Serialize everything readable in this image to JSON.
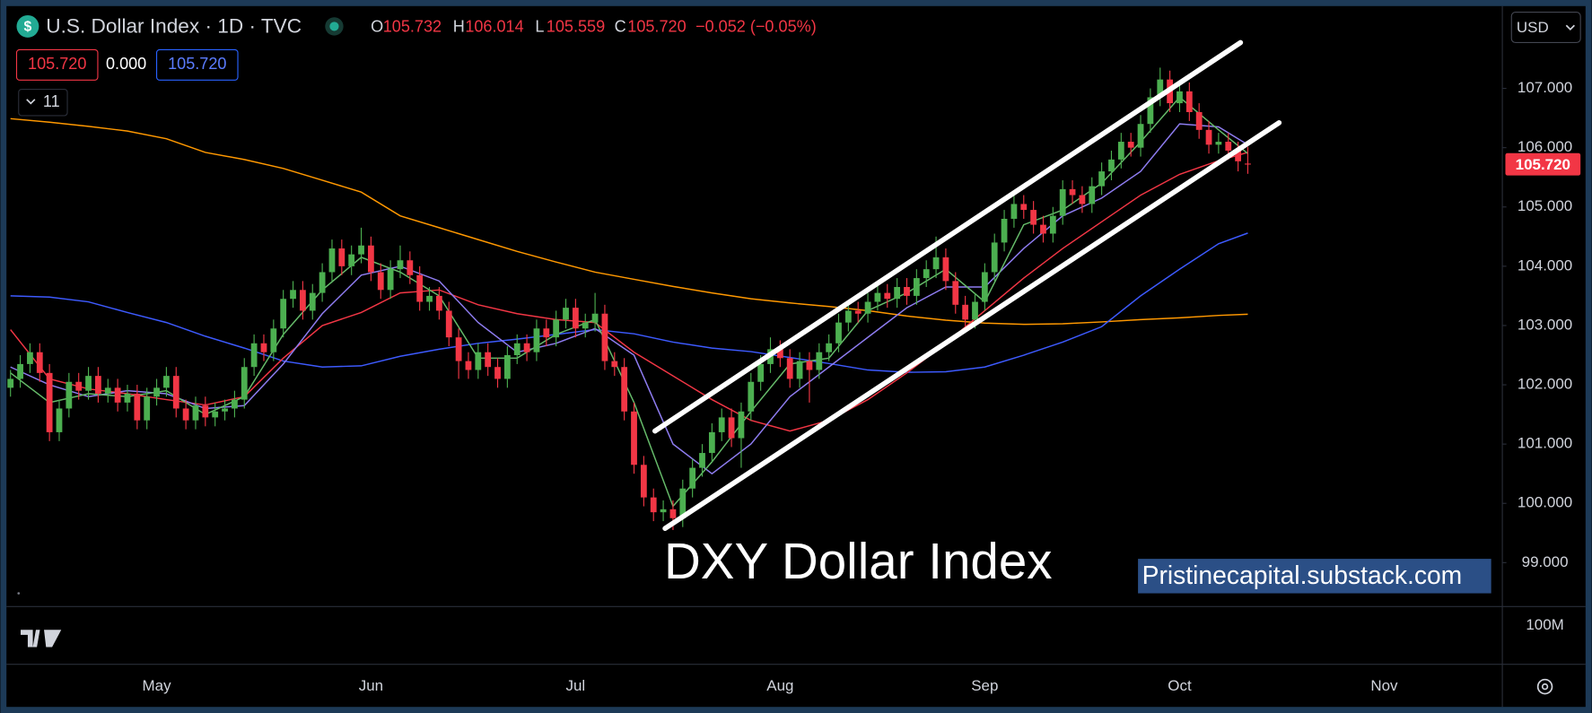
{
  "chart_data": {
    "type": "candlestick",
    "title": "U.S. Dollar Index · 1D · TVC",
    "status": {
      "fields": [
        {
          "key": "O",
          "value": "105.732"
        },
        {
          "key": "H",
          "value": "106.014"
        },
        {
          "key": "L",
          "value": "105.559"
        },
        {
          "key": "C",
          "value": "105.720"
        }
      ],
      "change": "−0.052 (−0.05%)"
    },
    "badges": [
      "105.720",
      "0.000",
      "105.720"
    ],
    "indicator_count": "11",
    "currency": "USD",
    "last_label": "105.720",
    "volume_axis_label": "100M",
    "annotations": [
      "DXY Dollar Index",
      "Pristinecapital.substack.com"
    ],
    "up_color": "#4caf50",
    "down_color": "#f23645",
    "grid": false,
    "ylim": [
      98.26,
      108.32
    ],
    "yticks": [
      {
        "value": 99,
        "label": "99.000"
      },
      {
        "value": 100,
        "label": "100.000"
      },
      {
        "value": 101,
        "label": "101.000"
      },
      {
        "value": 102,
        "label": "102.000"
      },
      {
        "value": 103,
        "label": "103.000"
      },
      {
        "value": 104,
        "label": "104.000"
      },
      {
        "value": 105,
        "label": "105.000"
      },
      {
        "value": 106,
        "label": "106.000"
      },
      {
        "value": 107,
        "label": "107.000"
      }
    ],
    "categories": [
      null,
      null,
      null,
      null,
      null,
      null,
      null,
      null,
      null,
      null,
      null,
      null,
      null,
      null,
      null,
      "May",
      null,
      null,
      null,
      null,
      null,
      null,
      null,
      null,
      null,
      null,
      null,
      null,
      null,
      null,
      null,
      null,
      null,
      null,
      null,
      null,
      null,
      "Jun",
      null,
      null,
      null,
      null,
      null,
      null,
      null,
      null,
      null,
      null,
      null,
      null,
      null,
      null,
      null,
      null,
      null,
      null,
      null,
      null,
      "Jul",
      null,
      null,
      null,
      null,
      null,
      null,
      null,
      null,
      null,
      null,
      null,
      null,
      null,
      null,
      null,
      null,
      null,
      null,
      null,
      null,
      "Aug",
      null,
      null,
      null,
      null,
      null,
      null,
      null,
      null,
      null,
      null,
      null,
      null,
      null,
      null,
      null,
      null,
      null,
      null,
      null,
      null,
      "Sep",
      null,
      null,
      null,
      null,
      null,
      null,
      null,
      null,
      null,
      null,
      null,
      null,
      null,
      null,
      null,
      null,
      null,
      null,
      null,
      "Oct",
      null,
      null,
      null,
      null,
      null,
      null,
      null,
      null,
      null,
      null,
      null,
      null,
      null,
      null,
      null,
      null,
      null,
      null,
      null,
      null,
      "Nov",
      null
    ],
    "ohlc": [
      [
        101.95,
        102.25,
        101.8,
        102.1
      ],
      [
        102.1,
        102.5,
        101.95,
        102.35
      ],
      [
        102.35,
        102.7,
        102.2,
        102.55
      ],
      [
        102.55,
        102.7,
        102.05,
        102.2
      ],
      [
        102.2,
        102.35,
        101.05,
        101.2
      ],
      [
        101.2,
        101.75,
        101.05,
        101.6
      ],
      [
        101.6,
        102.2,
        101.45,
        102.05
      ],
      [
        102.05,
        102.2,
        101.75,
        101.9
      ],
      [
        101.9,
        102.3,
        101.75,
        102.15
      ],
      [
        102.15,
        102.3,
        101.7,
        101.85
      ],
      [
        101.85,
        102.1,
        101.7,
        101.95
      ],
      [
        101.95,
        102.1,
        101.55,
        101.7
      ],
      [
        101.7,
        102.0,
        101.55,
        101.85
      ],
      [
        101.85,
        102.0,
        101.25,
        101.4
      ],
      [
        101.4,
        101.95,
        101.25,
        101.8
      ],
      [
        101.8,
        102.1,
        101.65,
        101.95
      ],
      [
        101.95,
        102.3,
        101.8,
        102.15
      ],
      [
        102.15,
        102.3,
        101.45,
        101.6
      ],
      [
        101.6,
        101.75,
        101.25,
        101.4
      ],
      [
        101.4,
        101.8,
        101.25,
        101.65
      ],
      [
        101.65,
        101.8,
        101.3,
        101.45
      ],
      [
        101.45,
        101.7,
        101.3,
        101.55
      ],
      [
        101.55,
        101.75,
        101.4,
        101.6
      ],
      [
        101.6,
        101.9,
        101.45,
        101.75
      ],
      [
        101.75,
        102.45,
        101.6,
        102.3
      ],
      [
        102.3,
        102.85,
        102.15,
        102.7
      ],
      [
        102.7,
        102.85,
        102.4,
        102.55
      ],
      [
        102.55,
        103.1,
        102.4,
        102.95
      ],
      [
        102.95,
        103.6,
        102.8,
        103.45
      ],
      [
        103.45,
        103.75,
        103.3,
        103.6
      ],
      [
        103.6,
        103.75,
        103.1,
        103.25
      ],
      [
        103.25,
        103.7,
        103.1,
        103.55
      ],
      [
        103.55,
        104.05,
        103.4,
        103.9
      ],
      [
        103.9,
        104.45,
        103.75,
        104.3
      ],
      [
        104.3,
        104.45,
        103.85,
        104.0
      ],
      [
        104.0,
        104.35,
        103.85,
        104.2
      ],
      [
        104.2,
        104.65,
        104.05,
        104.35
      ],
      [
        104.35,
        104.5,
        103.75,
        103.9
      ],
      [
        103.9,
        104.05,
        103.45,
        103.6
      ],
      [
        103.6,
        104.1,
        103.45,
        103.95
      ],
      [
        103.95,
        104.35,
        103.8,
        104.1
      ],
      [
        104.1,
        104.25,
        103.7,
        103.85
      ],
      [
        103.85,
        104.0,
        103.25,
        103.4
      ],
      [
        103.4,
        103.65,
        103.25,
        103.5
      ],
      [
        103.5,
        103.65,
        103.1,
        103.25
      ],
      [
        103.25,
        103.4,
        102.65,
        102.8
      ],
      [
        102.8,
        102.95,
        102.1,
        102.4
      ],
      [
        102.4,
        102.55,
        102.1,
        102.25
      ],
      [
        102.25,
        102.7,
        102.1,
        102.55
      ],
      [
        102.55,
        102.7,
        102.15,
        102.3
      ],
      [
        102.3,
        102.45,
        101.95,
        102.1
      ],
      [
        102.1,
        102.65,
        101.95,
        102.5
      ],
      [
        102.5,
        102.85,
        102.35,
        102.7
      ],
      [
        102.7,
        102.85,
        102.4,
        102.55
      ],
      [
        102.55,
        103.1,
        102.4,
        102.95
      ],
      [
        102.95,
        103.1,
        102.65,
        102.8
      ],
      [
        102.8,
        103.25,
        102.65,
        103.1
      ],
      [
        103.1,
        103.45,
        102.95,
        103.3
      ],
      [
        103.3,
        103.45,
        102.8,
        102.95
      ],
      [
        102.95,
        103.2,
        102.8,
        103.05
      ],
      [
        103.05,
        103.55,
        102.9,
        103.2
      ],
      [
        103.2,
        103.35,
        102.25,
        102.4
      ],
      [
        102.4,
        102.55,
        102.15,
        102.3
      ],
      [
        102.3,
        102.45,
        101.4,
        101.55
      ],
      [
        101.55,
        101.7,
        100.5,
        100.65
      ],
      [
        100.65,
        100.8,
        99.95,
        100.1
      ],
      [
        100.1,
        100.25,
        99.7,
        99.85
      ],
      [
        99.85,
        100.05,
        99.7,
        99.9
      ],
      [
        99.9,
        100.05,
        99.55,
        99.75
      ],
      [
        99.75,
        100.4,
        99.6,
        100.25
      ],
      [
        100.25,
        100.75,
        100.1,
        100.6
      ],
      [
        100.6,
        101.0,
        100.45,
        100.85
      ],
      [
        100.85,
        101.35,
        100.7,
        101.2
      ],
      [
        101.2,
        101.6,
        101.05,
        101.45
      ],
      [
        101.45,
        101.6,
        100.95,
        101.1
      ],
      [
        101.1,
        101.7,
        100.6,
        101.55
      ],
      [
        101.55,
        102.2,
        101.4,
        102.05
      ],
      [
        102.05,
        102.5,
        101.9,
        102.35
      ],
      [
        102.35,
        102.8,
        102.2,
        102.6
      ],
      [
        102.6,
        102.75,
        102.3,
        102.45
      ],
      [
        102.45,
        102.6,
        101.95,
        102.1
      ],
      [
        102.1,
        102.55,
        101.95,
        102.4
      ],
      [
        102.4,
        102.55,
        101.7,
        102.25
      ],
      [
        102.25,
        102.7,
        102.1,
        102.55
      ],
      [
        102.55,
        102.85,
        102.4,
        102.7
      ],
      [
        102.7,
        103.2,
        102.55,
        103.05
      ],
      [
        103.05,
        103.4,
        102.9,
        103.25
      ],
      [
        103.25,
        103.4,
        103.05,
        103.2
      ],
      [
        103.2,
        103.55,
        103.05,
        103.4
      ],
      [
        103.4,
        103.7,
        103.25,
        103.55
      ],
      [
        103.55,
        103.7,
        103.3,
        103.45
      ],
      [
        103.45,
        103.8,
        103.3,
        103.65
      ],
      [
        103.65,
        103.8,
        103.35,
        103.5
      ],
      [
        103.5,
        103.95,
        103.35,
        103.8
      ],
      [
        103.8,
        104.1,
        103.65,
        103.95
      ],
      [
        103.95,
        104.5,
        103.8,
        104.15
      ],
      [
        104.15,
        104.3,
        103.6,
        103.75
      ],
      [
        103.75,
        103.9,
        103.2,
        103.35
      ],
      [
        103.35,
        103.5,
        102.95,
        103.1
      ],
      [
        103.1,
        103.55,
        102.95,
        103.4
      ],
      [
        103.4,
        104.05,
        103.25,
        103.9
      ],
      [
        103.9,
        104.55,
        103.75,
        104.4
      ],
      [
        104.4,
        104.95,
        104.25,
        104.8
      ],
      [
        104.8,
        105.2,
        104.65,
        105.05
      ],
      [
        105.05,
        105.2,
        104.8,
        104.95
      ],
      [
        104.95,
        105.1,
        104.55,
        104.7
      ],
      [
        104.7,
        104.85,
        104.4,
        104.55
      ],
      [
        104.55,
        105.0,
        104.4,
        104.85
      ],
      [
        104.85,
        105.45,
        104.7,
        105.3
      ],
      [
        105.3,
        105.45,
        105.05,
        105.2
      ],
      [
        105.2,
        105.35,
        104.9,
        105.05
      ],
      [
        105.05,
        105.5,
        104.9,
        105.35
      ],
      [
        105.35,
        105.75,
        105.2,
        105.6
      ],
      [
        105.6,
        105.95,
        105.45,
        105.8
      ],
      [
        105.8,
        106.25,
        105.65,
        106.1
      ],
      [
        106.1,
        106.25,
        105.85,
        106.0
      ],
      [
        106.0,
        106.55,
        105.85,
        106.4
      ],
      [
        106.4,
        107.0,
        106.25,
        106.85
      ],
      [
        106.85,
        107.35,
        106.7,
        107.15
      ],
      [
        107.15,
        107.3,
        106.6,
        106.75
      ],
      [
        106.75,
        107.1,
        106.6,
        106.95
      ],
      [
        106.95,
        107.1,
        106.45,
        106.6
      ],
      [
        106.6,
        106.75,
        106.15,
        106.3
      ],
      [
        106.3,
        106.45,
        105.9,
        106.05
      ],
      [
        106.05,
        106.25,
        105.9,
        106.1
      ],
      [
        106.1,
        106.25,
        105.8,
        105.95
      ],
      [
        105.95,
        106.1,
        105.6,
        105.77
      ],
      [
        105.732,
        106.014,
        105.559,
        105.72
      ],
      null,
      null,
      null,
      null,
      null,
      null,
      null,
      null,
      null,
      null,
      null,
      null,
      null,
      null,
      null
    ],
    "lines": [
      {
        "color": "#ff9800",
        "x": [
          0,
          4,
          8,
          12,
          16,
          20,
          24,
          28,
          32,
          36,
          40,
          44,
          48,
          52,
          56,
          60,
          64,
          68,
          72,
          76,
          80,
          84,
          88,
          92,
          96,
          100,
          104,
          108,
          112,
          116,
          120,
          124,
          127
        ],
        "values": [
          106.49,
          106.43,
          106.36,
          106.28,
          106.15,
          105.92,
          105.8,
          105.65,
          105.45,
          105.25,
          104.85,
          104.65,
          104.45,
          104.25,
          104.07,
          103.9,
          103.78,
          103.66,
          103.55,
          103.45,
          103.38,
          103.32,
          103.25,
          103.16,
          103.09,
          103.04,
          103.02,
          103.03,
          103.06,
          103.1,
          103.13,
          103.17,
          103.19
        ]
      },
      {
        "color": "#3d5afe",
        "x": [
          0,
          4,
          8,
          12,
          16,
          20,
          24,
          28,
          32,
          36,
          40,
          44,
          48,
          52,
          56,
          60,
          64,
          68,
          72,
          76,
          80,
          84,
          88,
          92,
          96,
          100,
          104,
          108,
          112,
          116,
          120,
          124,
          127
        ],
        "values": [
          103.5,
          103.48,
          103.4,
          103.22,
          103.05,
          102.82,
          102.62,
          102.4,
          102.3,
          102.32,
          102.48,
          102.6,
          102.7,
          102.77,
          102.85,
          102.93,
          102.86,
          102.72,
          102.62,
          102.56,
          102.46,
          102.36,
          102.25,
          102.21,
          102.22,
          102.3,
          102.5,
          102.72,
          102.98,
          103.5,
          103.95,
          104.38,
          104.56
        ]
      },
      {
        "color": "#f23645",
        "x": [
          0,
          4,
          8,
          12,
          16,
          20,
          24,
          28,
          32,
          36,
          40,
          44,
          48,
          52,
          56,
          60,
          64,
          68,
          72,
          76,
          80,
          84,
          88,
          92,
          96,
          100,
          104,
          108,
          112,
          116,
          120,
          124,
          127
        ],
        "values": [
          102.93,
          102.1,
          101.93,
          101.85,
          101.75,
          101.66,
          101.8,
          102.45,
          103.0,
          103.22,
          103.55,
          103.6,
          103.35,
          103.2,
          103.1,
          103.05,
          102.55,
          102.15,
          101.75,
          101.4,
          101.22,
          101.4,
          101.75,
          102.2,
          102.7,
          103.25,
          103.8,
          104.3,
          104.75,
          105.2,
          105.55,
          105.78,
          105.92
        ]
      },
      {
        "color": "#8e7cf0",
        "x": [
          0,
          4,
          8,
          12,
          16,
          20,
          24,
          28,
          32,
          36,
          40,
          44,
          48,
          52,
          56,
          60,
          64,
          68,
          72,
          76,
          80,
          84,
          88,
          92,
          96,
          100,
          104,
          108,
          112,
          116,
          120,
          124,
          127
        ],
        "values": [
          102.3,
          102.0,
          101.8,
          101.9,
          101.85,
          101.6,
          101.65,
          102.35,
          103.2,
          103.85,
          104.0,
          103.75,
          103.05,
          102.55,
          102.7,
          102.95,
          102.5,
          101.0,
          100.5,
          101.0,
          101.8,
          102.3,
          102.8,
          103.3,
          103.65,
          103.65,
          104.3,
          104.85,
          105.15,
          105.6,
          106.4,
          106.35,
          106.05
        ]
      },
      {
        "color": "#66bb6a",
        "x": [
          0,
          4,
          8,
          12,
          16,
          20,
          24,
          28,
          32,
          36,
          40,
          44,
          48,
          52,
          56,
          60,
          64,
          68,
          72,
          76,
          80,
          84,
          88,
          92,
          96,
          100,
          104,
          108,
          112,
          116,
          120,
          124,
          127
        ],
        "values": [
          102.2,
          101.7,
          101.85,
          101.8,
          101.9,
          101.5,
          101.8,
          102.85,
          103.6,
          104.15,
          103.9,
          103.5,
          102.45,
          102.45,
          102.85,
          103.1,
          101.7,
          99.95,
          100.7,
          101.55,
          102.35,
          102.45,
          103.25,
          103.55,
          103.95,
          103.4,
          104.7,
          104.95,
          105.4,
          106.1,
          106.85,
          106.3,
          105.9
        ]
      }
    ]
  }
}
